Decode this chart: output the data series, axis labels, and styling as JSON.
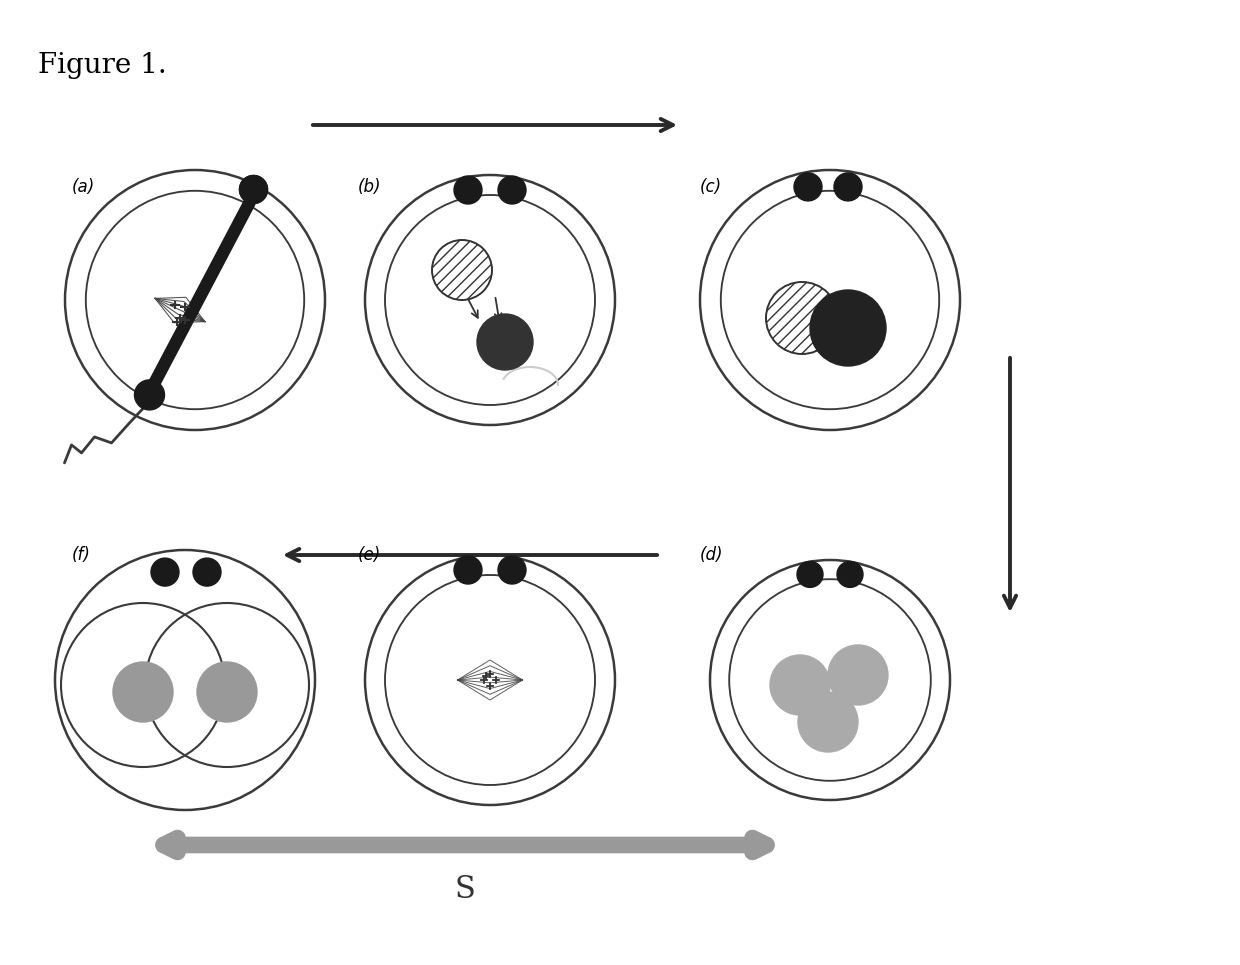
{
  "figure_title": "Figure 1.",
  "bg_color": "#ffffff",
  "panel_labels": [
    "(a)",
    "(b)",
    "(c)",
    "(d)",
    "(e)",
    "(f)"
  ],
  "dark": "#1a1a1a",
  "mid_gray": "#666666",
  "light_gray": "#aaaaaa",
  "edge_color": "#444444",
  "arrow_color": "#333333",
  "gray_arrow_color": "#999999"
}
